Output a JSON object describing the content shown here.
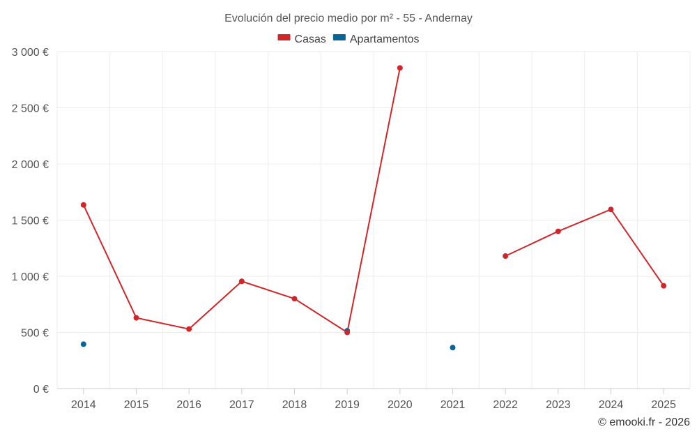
{
  "chart_data": {
    "type": "line",
    "title": "Evolución del precio medio por m² - 55 - Andernay",
    "credit": "© emooki.fr - 2026",
    "categories": [
      "2014",
      "2015",
      "2016",
      "2017",
      "2018",
      "2019",
      "2020",
      "2021",
      "2022",
      "2023",
      "2024",
      "2025"
    ],
    "ylim": [
      0,
      3000
    ],
    "yticks": [
      0,
      500,
      1000,
      1500,
      2000,
      2500,
      3000
    ],
    "ytick_labels": [
      "0 €",
      "500 €",
      "1 000 €",
      "1 500 €",
      "2 000 €",
      "2 500 €",
      "3 000 €"
    ],
    "grid": true,
    "legend_position": "top-center",
    "series": [
      {
        "name": "Casas",
        "color": "#d0262a",
        "values": [
          1635,
          630,
          530,
          955,
          800,
          500,
          2855,
          null,
          1180,
          1400,
          1595,
          915
        ]
      },
      {
        "name": "Apartamentos",
        "color": "#0b6496",
        "values": [
          395,
          null,
          null,
          null,
          null,
          515,
          null,
          365,
          null,
          null,
          null,
          null
        ]
      }
    ]
  }
}
